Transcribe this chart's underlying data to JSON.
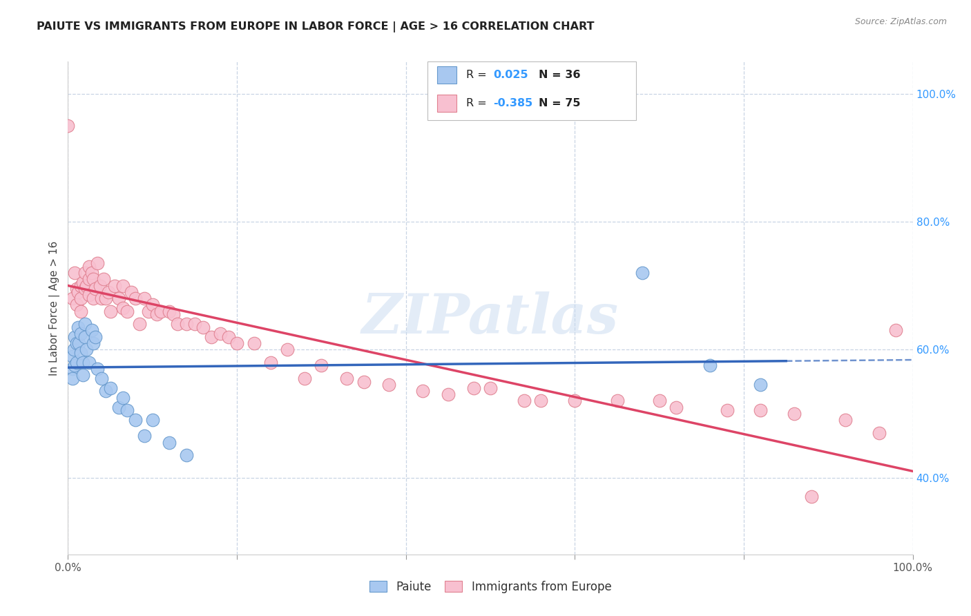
{
  "title": "PAIUTE VS IMMIGRANTS FROM EUROPE IN LABOR FORCE | AGE > 16 CORRELATION CHART",
  "source_text": "Source: ZipAtlas.com",
  "ylabel": "In Labor Force | Age > 16",
  "xlim": [
    0.0,
    1.0
  ],
  "ylim": [
    0.28,
    1.05
  ],
  "x_ticks": [
    0.0,
    0.2,
    0.4,
    0.6,
    0.8,
    1.0
  ],
  "x_tick_labels": [
    "0.0%",
    "",
    "",
    "",
    "",
    "100.0%"
  ],
  "y_tick_labels_right": [
    "40.0%",
    "60.0%",
    "80.0%",
    "100.0%"
  ],
  "y_tick_positions_right": [
    0.4,
    0.6,
    0.8,
    1.0
  ],
  "paiute_color": "#a8c8f0",
  "paiute_edge_color": "#6699cc",
  "europe_color": "#f8c0d0",
  "europe_edge_color": "#e08090",
  "paiute_line_color": "#3366bb",
  "europe_line_color": "#dd4466",
  "watermark": "ZIPatlas",
  "background_color": "#ffffff",
  "grid_color": "#c8d4e4",
  "legend_r1_color": "#3399ff",
  "legend_r2_color": "#3399ff",
  "legend_n_color": "#222222",
  "paiute_x": [
    0.005,
    0.005,
    0.005,
    0.007,
    0.008,
    0.008,
    0.01,
    0.01,
    0.012,
    0.013,
    0.015,
    0.015,
    0.018,
    0.018,
    0.02,
    0.02,
    0.022,
    0.025,
    0.028,
    0.03,
    0.032,
    0.035,
    0.04,
    0.045,
    0.05,
    0.06,
    0.065,
    0.07,
    0.08,
    0.09,
    0.1,
    0.12,
    0.14,
    0.68,
    0.76,
    0.82
  ],
  "paiute_y": [
    0.59,
    0.57,
    0.555,
    0.6,
    0.62,
    0.575,
    0.61,
    0.58,
    0.635,
    0.61,
    0.625,
    0.595,
    0.58,
    0.56,
    0.64,
    0.62,
    0.6,
    0.58,
    0.63,
    0.61,
    0.62,
    0.57,
    0.555,
    0.535,
    0.54,
    0.51,
    0.525,
    0.505,
    0.49,
    0.465,
    0.49,
    0.455,
    0.435,
    0.72,
    0.575,
    0.545
  ],
  "europe_x": [
    0.0,
    0.005,
    0.008,
    0.01,
    0.01,
    0.012,
    0.015,
    0.015,
    0.015,
    0.018,
    0.02,
    0.02,
    0.022,
    0.025,
    0.025,
    0.025,
    0.028,
    0.03,
    0.03,
    0.032,
    0.035,
    0.038,
    0.04,
    0.042,
    0.045,
    0.048,
    0.05,
    0.055,
    0.06,
    0.065,
    0.065,
    0.07,
    0.075,
    0.08,
    0.085,
    0.09,
    0.095,
    0.1,
    0.105,
    0.11,
    0.12,
    0.125,
    0.13,
    0.14,
    0.15,
    0.16,
    0.17,
    0.18,
    0.19,
    0.2,
    0.22,
    0.24,
    0.26,
    0.28,
    0.3,
    0.33,
    0.35,
    0.38,
    0.42,
    0.45,
    0.48,
    0.5,
    0.54,
    0.56,
    0.6,
    0.65,
    0.7,
    0.72,
    0.78,
    0.82,
    0.86,
    0.88,
    0.92,
    0.96,
    0.98
  ],
  "europe_y": [
    0.95,
    0.68,
    0.72,
    0.695,
    0.67,
    0.69,
    0.7,
    0.68,
    0.66,
    0.705,
    0.72,
    0.695,
    0.7,
    0.73,
    0.71,
    0.685,
    0.72,
    0.71,
    0.68,
    0.695,
    0.735,
    0.7,
    0.68,
    0.71,
    0.68,
    0.69,
    0.66,
    0.7,
    0.68,
    0.7,
    0.665,
    0.66,
    0.69,
    0.68,
    0.64,
    0.68,
    0.66,
    0.67,
    0.655,
    0.66,
    0.66,
    0.655,
    0.64,
    0.64,
    0.64,
    0.635,
    0.62,
    0.625,
    0.62,
    0.61,
    0.61,
    0.58,
    0.6,
    0.555,
    0.575,
    0.555,
    0.55,
    0.545,
    0.535,
    0.53,
    0.54,
    0.54,
    0.52,
    0.52,
    0.52,
    0.52,
    0.52,
    0.51,
    0.505,
    0.505,
    0.5,
    0.37,
    0.49,
    0.47,
    0.63
  ]
}
